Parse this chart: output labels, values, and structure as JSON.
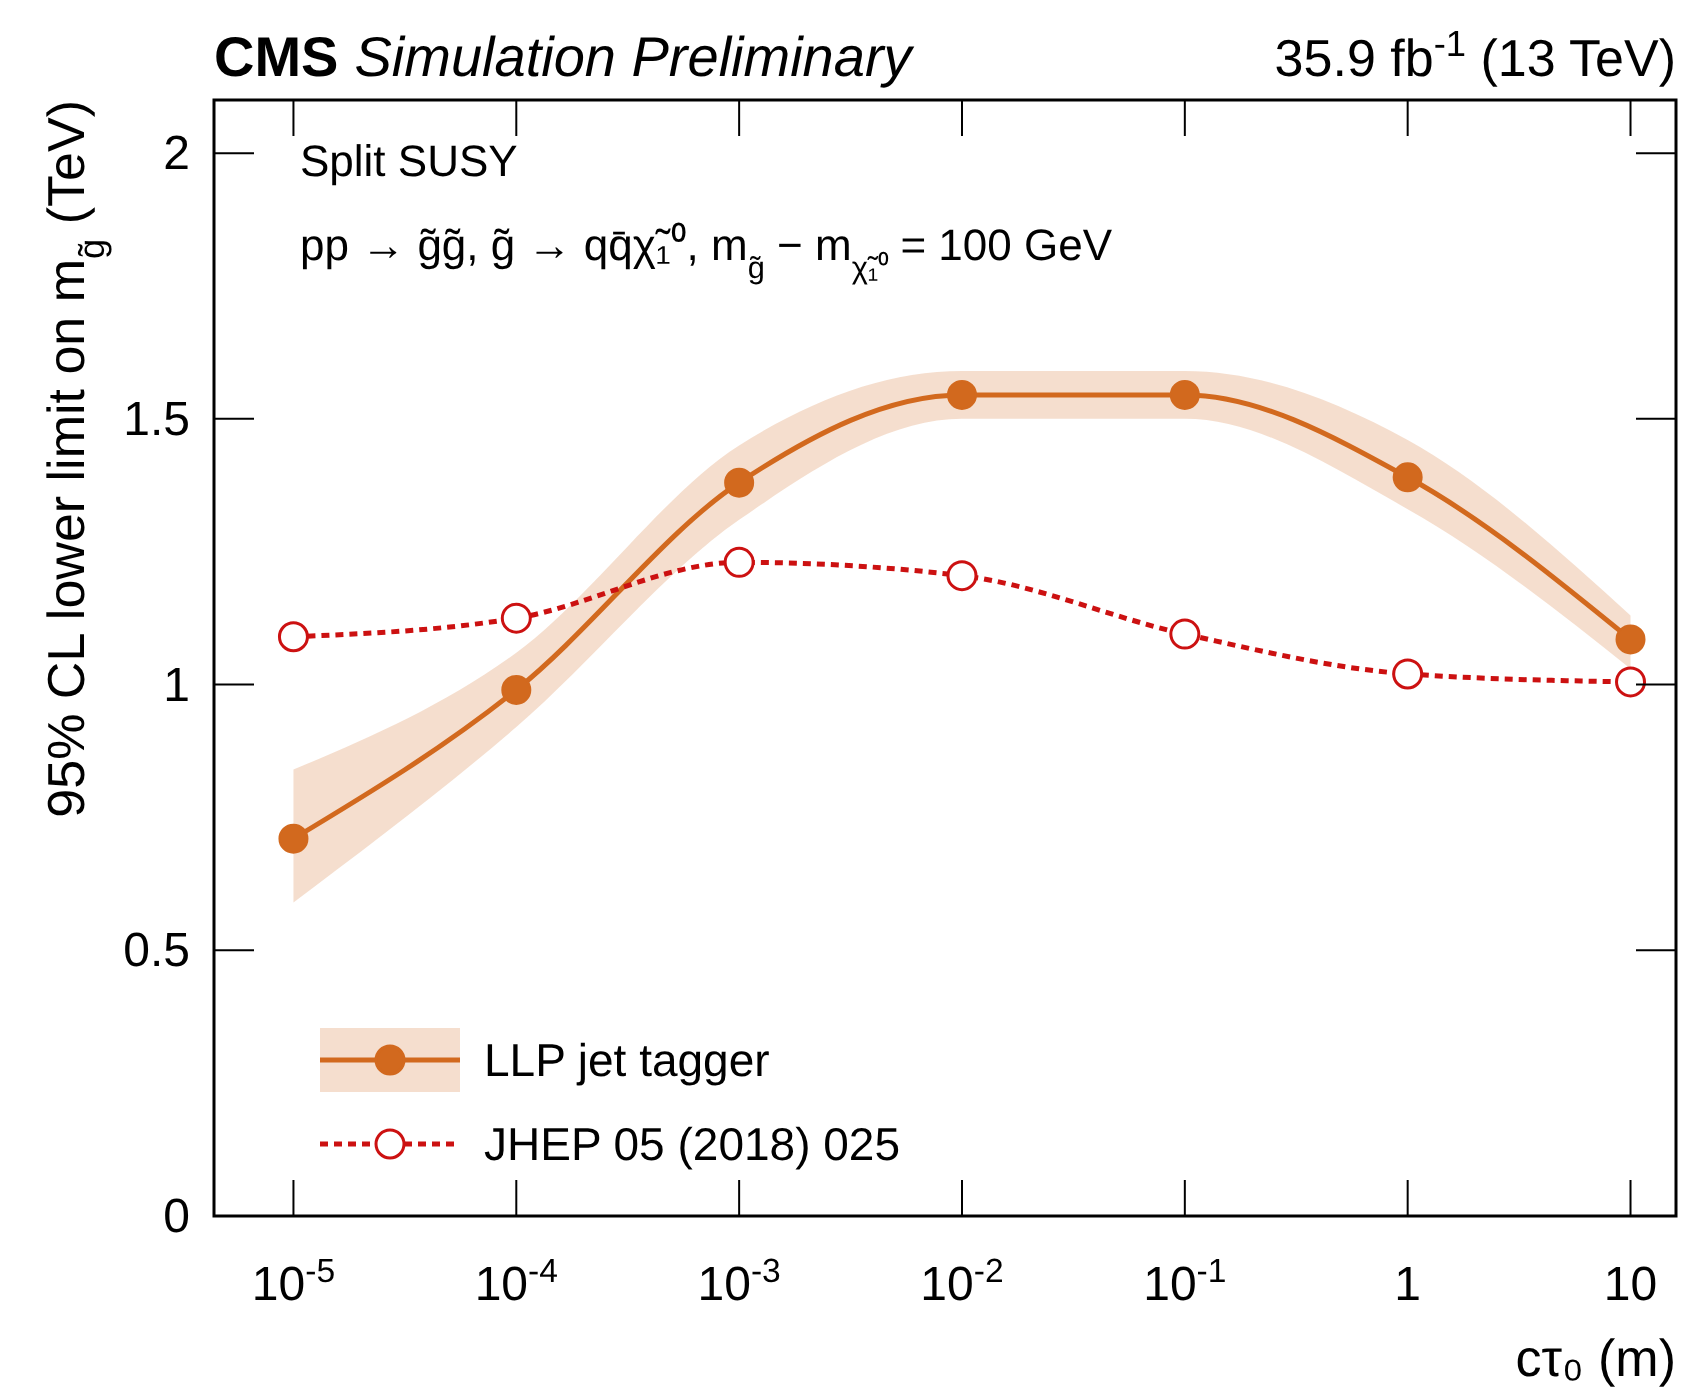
{
  "chart_data": {
    "type": "line",
    "title": "CMS",
    "subtitle": "Simulation Preliminary",
    "xlabel": "cτ₀ (m)",
    "ylabel": "95% CL lower limit on m$_{g̃}$ (TeV)",
    "annotations": [
      "35.9 fb$^{-1}$ (13 TeV)",
      "Split SUSY",
      "pp → g̃g̃, g̃ → qq̄χ̃₁⁰, m$_{g̃}$ − m$_{χ̃₁⁰}$ = 100 GeV"
    ],
    "log": "x",
    "xlim": [
      4.4e-06,
      16
    ],
    "ylim": [
      0,
      2.1
    ],
    "xticks": [
      {
        "value": 1e-05,
        "label": "10$^{-5}$"
      },
      {
        "value": 0.0001,
        "label": "10$^{-4}$"
      },
      {
        "value": 0.001,
        "label": "10$^{-3}$"
      },
      {
        "value": 0.01,
        "label": "10$^{-2}$"
      },
      {
        "value": 0.1,
        "label": "10$^{-1}$"
      },
      1,
      10
    ],
    "yticks": [
      0,
      0.5,
      1,
      1.5,
      2
    ],
    "x": [
      1e-05,
      0.0001,
      0.001,
      0.01,
      0.1,
      1,
      10
    ],
    "marker": "circle",
    "legend": "bottom left",
    "grid": false,
    "series": [
      {
        "name": "LLP jet tagger",
        "color": "#d2691e",
        "line_style": "solid",
        "values": [
          0.71,
          0.99,
          1.38,
          1.545,
          1.545,
          1.39,
          1.085
        ],
        "lower": [
          0.59,
          0.92,
          1.31,
          1.5,
          1.5,
          1.33,
          1.03
        ],
        "upper": [
          0.84,
          1.06,
          1.45,
          1.59,
          1.59,
          1.46,
          1.13
        ]
      },
      {
        "name": "JHEP 05 (2018) 025",
        "color": "#cc1111",
        "line_style": "dotted",
        "values": [
          1.09,
          1.125,
          1.23,
          1.205,
          1.095,
          1.02,
          1.005
        ]
      }
    ]
  }
}
